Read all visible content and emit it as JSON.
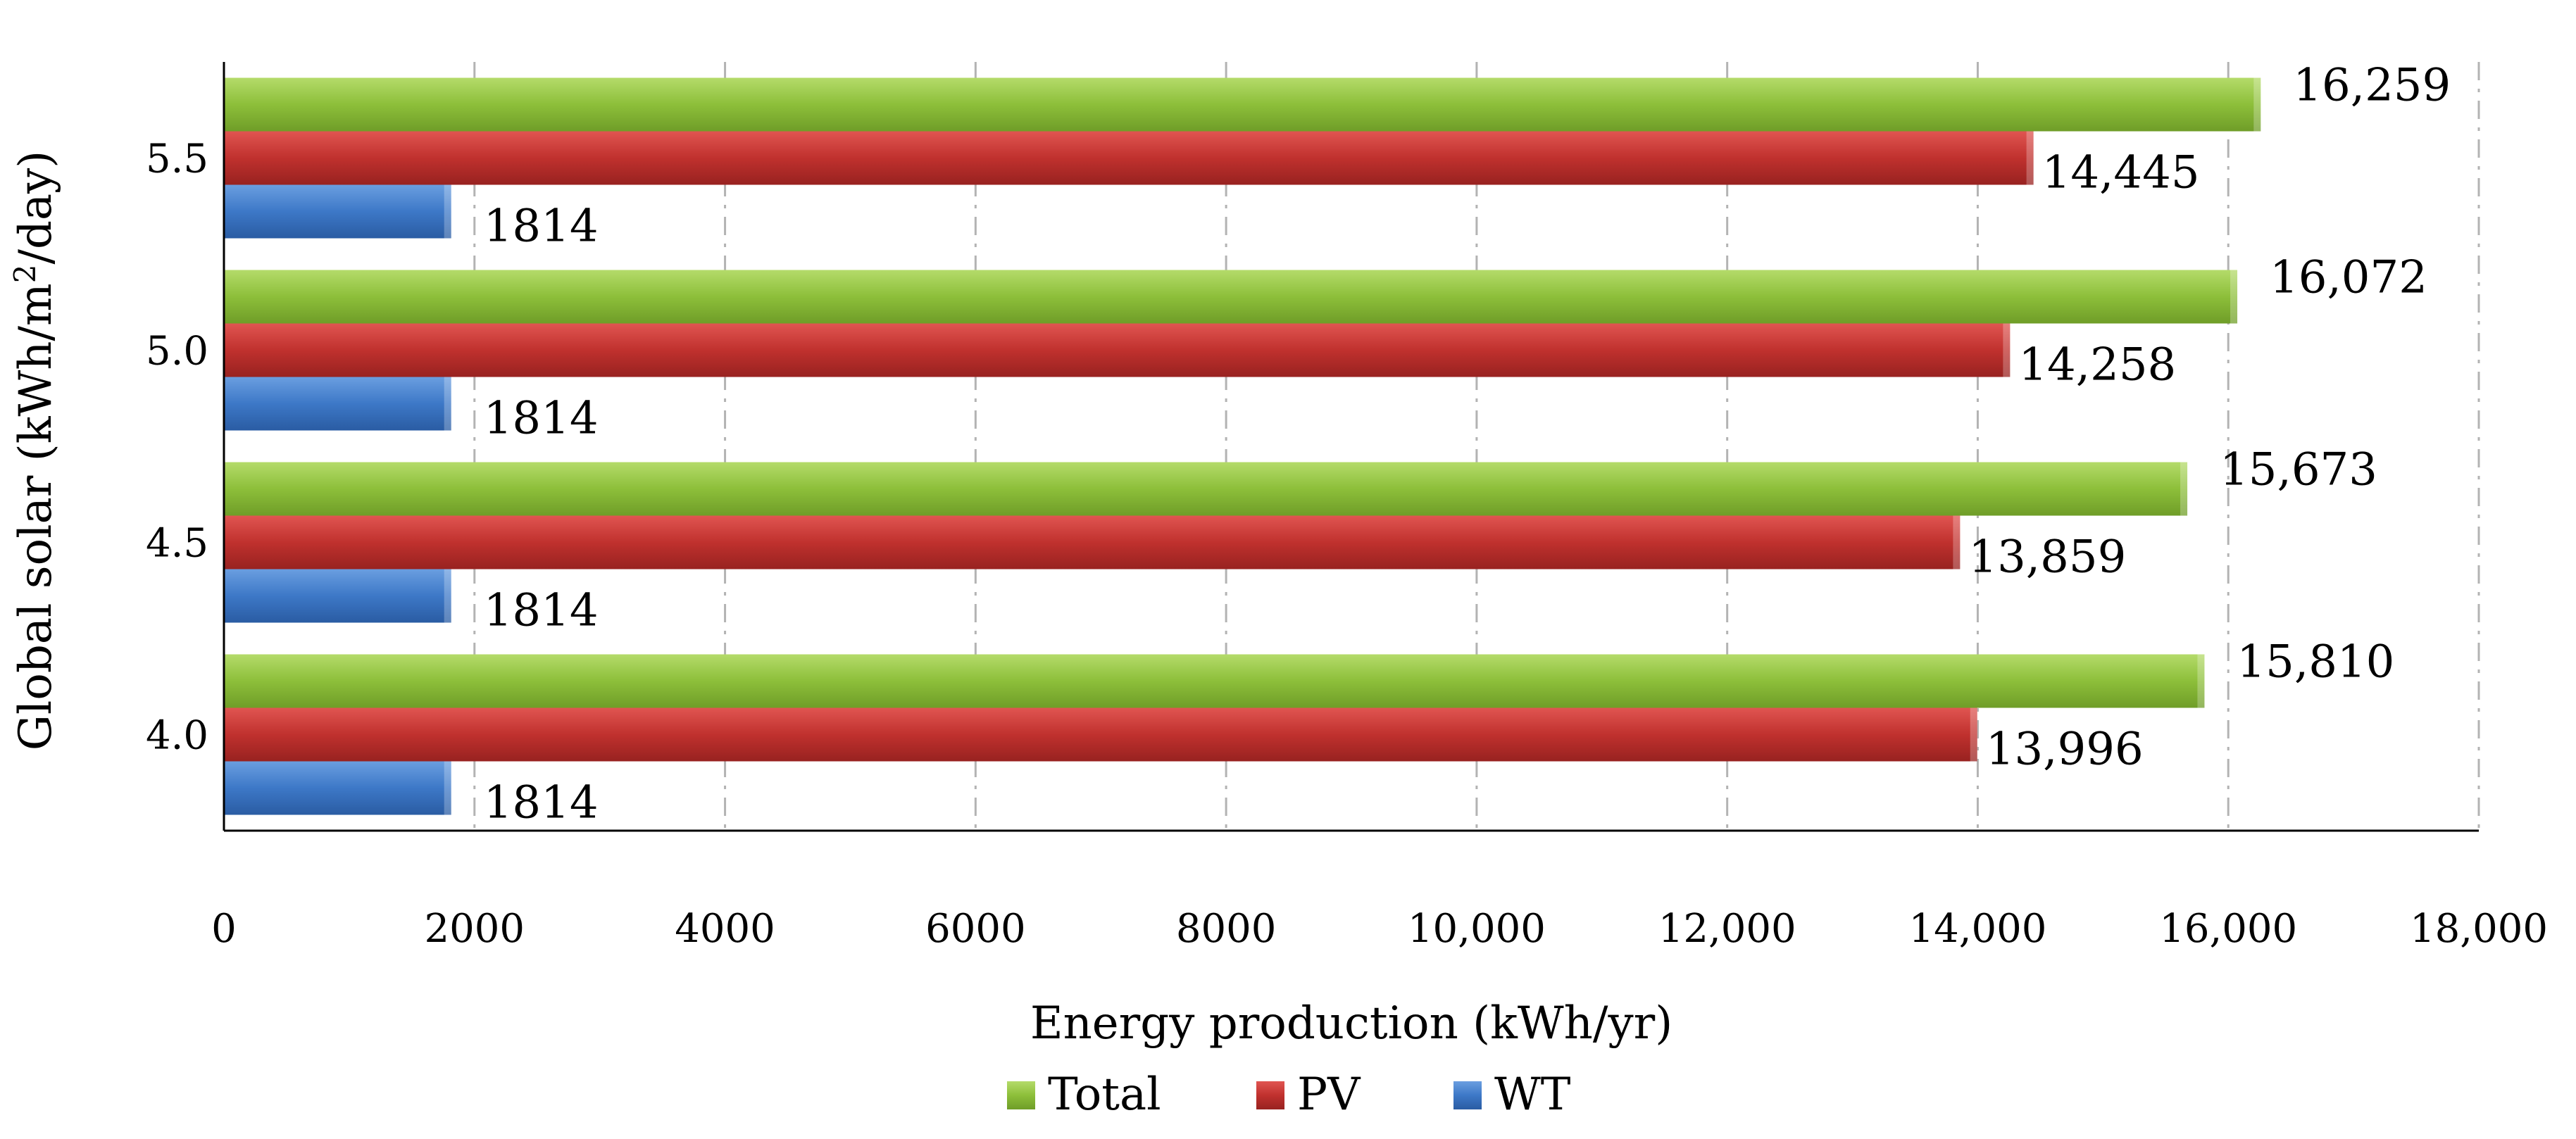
{
  "chart_data": {
    "type": "bar",
    "orientation": "horizontal",
    "title": "",
    "xlabel": "Energy production (kWh/yr)",
    "ylabel_prefix": "Global solar (kWh/m",
    "ylabel_sup": "2",
    "ylabel_suffix": "/day)",
    "categories": [
      "5.5",
      "5.0",
      "4.5",
      "4.0"
    ],
    "series": [
      {
        "name": "Total",
        "color": "#8dbf3a",
        "values": [
          16259,
          16072,
          15673,
          15810
        ],
        "labels": [
          "16,259",
          "16,072",
          "15,673",
          "15,810"
        ]
      },
      {
        "name": "PV",
        "color": "#c0312e",
        "values": [
          14445,
          14258,
          13859,
          13996
        ],
        "labels": [
          "14,445",
          "14,258",
          "13,859",
          "13,996"
        ]
      },
      {
        "name": "WT",
        "color": "#3d78c7",
        "values": [
          1814,
          1814,
          1814,
          1814
        ],
        "labels": [
          "1814",
          "1814",
          "1814",
          "1814"
        ]
      }
    ],
    "xlim": [
      0,
      18000
    ],
    "xticks": [
      0,
      2000,
      4000,
      6000,
      8000,
      10000,
      12000,
      14000,
      16000,
      18000
    ],
    "xtick_labels": [
      "0",
      "2000",
      "4000",
      "6000",
      "8000",
      "10,000",
      "12,000",
      "14,000",
      "16,000",
      "18,000"
    ],
    "grid": "vertical-dashed",
    "legend_position": "bottom"
  }
}
